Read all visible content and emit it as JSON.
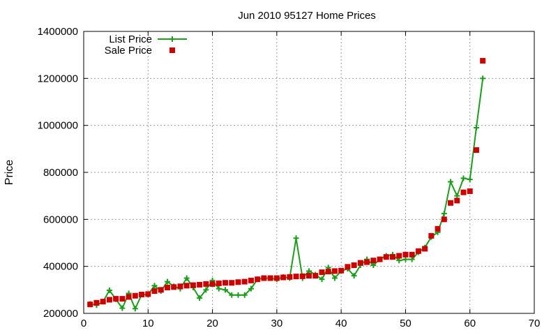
{
  "chart_data": {
    "type": "scatter",
    "title": "Jun 2010 95127 Home Prices",
    "xlabel": "",
    "ylabel": "Price",
    "xlim": [
      0,
      70
    ],
    "ylim": [
      200000,
      1400000
    ],
    "x_ticks": [
      0,
      10,
      20,
      30,
      40,
      50,
      60,
      70
    ],
    "y_ticks": [
      200000,
      400000,
      600000,
      800000,
      1000000,
      1200000,
      1400000
    ],
    "grid": true,
    "legend_position": "top-left",
    "series": [
      {
        "name": "List Price",
        "style": "line with plus markers",
        "color": "#1a9e1a",
        "x": [
          1,
          2,
          3,
          4,
          5,
          6,
          7,
          8,
          9,
          10,
          11,
          12,
          13,
          14,
          15,
          16,
          17,
          18,
          19,
          20,
          21,
          22,
          23,
          24,
          25,
          26,
          27,
          28,
          29,
          30,
          31,
          32,
          33,
          34,
          35,
          36,
          37,
          38,
          39,
          40,
          41,
          42,
          43,
          44,
          45,
          46,
          47,
          48,
          49,
          50,
          51,
          52,
          53,
          54,
          55,
          56,
          57,
          58,
          59,
          60,
          61,
          62
        ],
        "values": [
          240000,
          235000,
          250000,
          298000,
          260000,
          222000,
          285000,
          220000,
          280000,
          280000,
          318000,
          295000,
          335000,
          315000,
          305000,
          350000,
          310000,
          265000,
          300000,
          340000,
          305000,
          300000,
          278000,
          278000,
          278000,
          305000,
          345000,
          350000,
          350000,
          345000,
          355000,
          350000,
          520000,
          350000,
          380000,
          365000,
          345000,
          395000,
          350000,
          380000,
          390000,
          360000,
          405000,
          430000,
          405000,
          430000,
          445000,
          450000,
          425000,
          430000,
          430000,
          460000,
          480000,
          525000,
          545000,
          625000,
          760000,
          700000,
          775000,
          770000,
          990000,
          1200000
        ]
      },
      {
        "name": "Sale Price",
        "style": "square markers",
        "color": "#cc0000",
        "x": [
          1,
          2,
          3,
          4,
          5,
          6,
          7,
          8,
          9,
          10,
          11,
          12,
          13,
          14,
          15,
          16,
          17,
          18,
          19,
          20,
          21,
          22,
          23,
          24,
          25,
          26,
          27,
          28,
          29,
          30,
          31,
          32,
          33,
          34,
          35,
          36,
          37,
          38,
          39,
          40,
          41,
          42,
          43,
          44,
          45,
          46,
          47,
          48,
          49,
          50,
          51,
          52,
          53,
          54,
          55,
          56,
          57,
          58,
          59,
          60,
          61,
          62
        ],
        "values": [
          238000,
          245000,
          250000,
          258000,
          262000,
          262000,
          270000,
          275000,
          280000,
          282000,
          295000,
          300000,
          310000,
          312000,
          315000,
          318000,
          320000,
          322000,
          325000,
          325000,
          328000,
          330000,
          330000,
          333000,
          335000,
          340000,
          345000,
          350000,
          350000,
          350000,
          353000,
          355000,
          357000,
          358000,
          360000,
          360000,
          375000,
          378000,
          380000,
          382000,
          398000,
          405000,
          415000,
          418000,
          425000,
          430000,
          440000,
          440000,
          445000,
          450000,
          450000,
          465000,
          475000,
          530000,
          560000,
          600000,
          670000,
          680000,
          715000,
          720000,
          895000,
          1275000
        ]
      }
    ]
  }
}
